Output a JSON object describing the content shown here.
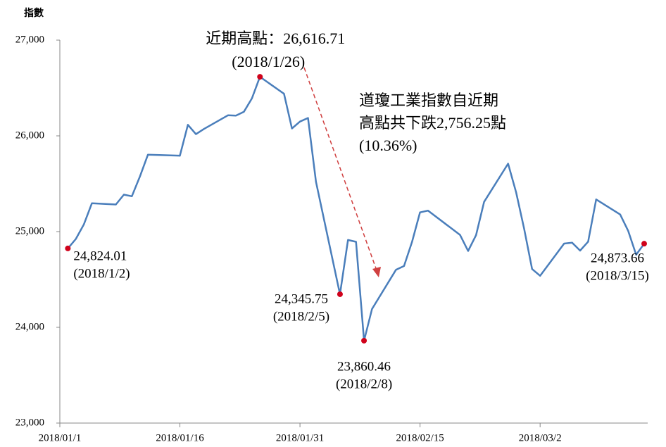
{
  "chart_data": {
    "type": "line",
    "y_label": "指數",
    "x": [
      "2018-01-02",
      "2018-01-03",
      "2018-01-04",
      "2018-01-05",
      "2018-01-08",
      "2018-01-09",
      "2018-01-10",
      "2018-01-11",
      "2018-01-12",
      "2018-01-16",
      "2018-01-17",
      "2018-01-18",
      "2018-01-19",
      "2018-01-22",
      "2018-01-23",
      "2018-01-24",
      "2018-01-25",
      "2018-01-26",
      "2018-01-29",
      "2018-01-30",
      "2018-01-31",
      "2018-02-01",
      "2018-02-02",
      "2018-02-05",
      "2018-02-06",
      "2018-02-07",
      "2018-02-08",
      "2018-02-09",
      "2018-02-12",
      "2018-02-13",
      "2018-02-14",
      "2018-02-15",
      "2018-02-16",
      "2018-02-20",
      "2018-02-21",
      "2018-02-22",
      "2018-02-23",
      "2018-02-26",
      "2018-02-27",
      "2018-02-28",
      "2018-03-01",
      "2018-03-02",
      "2018-03-05",
      "2018-03-06",
      "2018-03-07",
      "2018-03-08",
      "2018-03-09",
      "2018-03-12",
      "2018-03-13",
      "2018-03-14",
      "2018-03-15"
    ],
    "series": [
      {
        "name": "道瓊工業指數",
        "color": "#4a7ebb",
        "marker_color": "#d0021b",
        "values": [
          24824.01,
          24922.68,
          25075.13,
          25295.87,
          25283.0,
          25385.8,
          25369.13,
          25574.73,
          25803.19,
          25792.86,
          26115.65,
          26017.81,
          26071.72,
          26214.6,
          26210.81,
          26252.12,
          26392.79,
          26616.71,
          26439.48,
          26076.89,
          26149.39,
          26186.71,
          25520.96,
          24345.75,
          24912.77,
          24893.35,
          23860.46,
          24190.9,
          24601.27,
          24640.45,
          24893.49,
          25200.37,
          25219.38,
          24964.75,
          24797.78,
          24962.48,
          25309.99,
          25709.27,
          25410.03,
          25029.2,
          24608.98,
          24538.06,
          24874.76,
          24884.12,
          24801.36,
          24895.21,
          25335.74,
          25178.61,
          25007.03,
          24758.12,
          24873.66
        ],
        "value_labels": [
          "24,824.01",
          null,
          null,
          null,
          null,
          null,
          null,
          null,
          null,
          null,
          null,
          null,
          null,
          null,
          null,
          null,
          null,
          "近期高點：26,616.71",
          null,
          null,
          null,
          null,
          null,
          "24,345.75",
          null,
          null,
          "23,860.46",
          null,
          null,
          null,
          null,
          null,
          null,
          null,
          null,
          null,
          null,
          null,
          null,
          null,
          null,
          null,
          null,
          null,
          null,
          null,
          null,
          null,
          null,
          null,
          "24,873.66"
        ],
        "date_labels": [
          "(2018/1/2)",
          null,
          null,
          null,
          null,
          null,
          null,
          null,
          null,
          null,
          null,
          null,
          null,
          null,
          null,
          null,
          null,
          "(2018/1/26)",
          null,
          null,
          null,
          null,
          null,
          "(2018/2/5)",
          null,
          null,
          "(2018/2/8)",
          null,
          null,
          null,
          null,
          null,
          null,
          null,
          null,
          null,
          null,
          null,
          null,
          null,
          null,
          null,
          null,
          null,
          null,
          null,
          null,
          null,
          null,
          null,
          "(2018/3/15)"
        ]
      }
    ],
    "annotation": [
      "道瓊工業指數自近期",
      "高點共下跌2,756.25點",
      "(10.36%)"
    ],
    "xlim": [
      "2018-01-01",
      "2018-03-15"
    ],
    "xticks": [
      {
        "value": "2018-01-01",
        "label": "2018/01/1"
      },
      {
        "value": "2018-01-16",
        "label": "2018/01/16"
      },
      {
        "value": "2018-01-31",
        "label": "2018/01/31"
      },
      {
        "value": "2018-02-15",
        "label": "2018/02/15"
      },
      {
        "value": "2018-03-02",
        "label": "2018/03/2"
      }
    ],
    "ylim": [
      23000,
      27000
    ],
    "yticks": [
      {
        "value": 23000,
        "label": "23,000"
      },
      {
        "value": 24000,
        "label": "24,000"
      },
      {
        "value": 25000,
        "label": "25,000"
      },
      {
        "value": 26000,
        "label": "26,000"
      },
      {
        "value": 27000,
        "label": "27,000"
      }
    ],
    "grid": false
  }
}
